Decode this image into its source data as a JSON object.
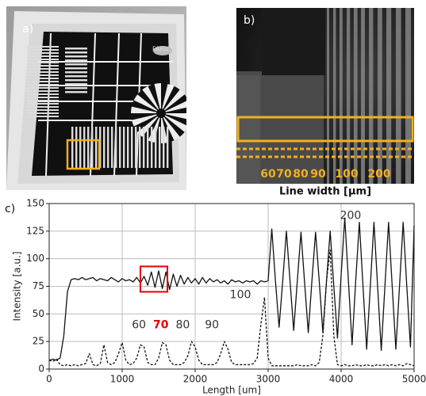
{
  "figure": {
    "a_label": "a)",
    "b_label": "b)",
    "b_ticks": [
      "60",
      "70",
      "80",
      "90",
      "100",
      "200"
    ],
    "b_axis_label": "Line width [μm]"
  },
  "chart_data": {
    "type": "line",
    "panel_label": "c)",
    "x_label": "Length [um]",
    "y_label": "Intensity [a.u.]",
    "xlim": [
      0,
      5000
    ],
    "xticks": [
      0,
      1000,
      2000,
      3000,
      4000,
      5000
    ],
    "ylim": [
      0,
      150
    ],
    "yticks": [
      0,
      25,
      50,
      75,
      100,
      125,
      150
    ],
    "grid": true,
    "x": [
      0,
      50,
      100,
      150,
      200,
      250,
      300,
      350,
      400,
      450,
      500,
      550,
      600,
      650,
      700,
      750,
      800,
      850,
      900,
      950,
      1000,
      1050,
      1100,
      1150,
      1200,
      1250,
      1300,
      1350,
      1400,
      1450,
      1500,
      1550,
      1600,
      1650,
      1700,
      1750,
      1800,
      1850,
      1900,
      1950,
      2000,
      2050,
      2100,
      2150,
      2200,
      2250,
      2300,
      2350,
      2400,
      2450,
      2500,
      2550,
      2600,
      2650,
      2700,
      2750,
      2800,
      2850,
      2900,
      2950,
      3000,
      3050,
      3100,
      3150,
      3200,
      3250,
      3300,
      3350,
      3400,
      3450,
      3500,
      3550,
      3600,
      3650,
      3700,
      3750,
      3800,
      3850,
      3900,
      3950,
      4000,
      4050,
      4100,
      4150,
      4200,
      4250,
      4300,
      4350,
      4400,
      4450,
      4500,
      4550,
      4600,
      4650,
      4700,
      4750,
      4800,
      4850,
      4900,
      4950,
      5000
    ],
    "series": [
      {
        "color": "#111111",
        "style": "solid",
        "values": [
          8,
          9,
          8,
          10,
          30,
          70,
          81,
          82,
          81,
          83,
          81,
          82,
          83,
          80,
          82,
          81,
          80,
          83,
          81,
          79,
          82,
          80,
          81,
          79,
          83,
          78,
          84,
          76,
          88,
          74,
          89,
          73,
          88,
          72,
          86,
          75,
          85,
          77,
          83,
          78,
          82,
          77,
          83,
          78,
          82,
          79,
          81,
          78,
          80,
          77,
          81,
          79,
          80,
          78,
          80,
          79,
          80,
          77,
          80,
          79,
          80,
          127,
          80,
          38,
          80,
          125,
          80,
          35,
          80,
          124,
          78,
          33,
          80,
          124,
          80,
          33,
          80,
          125,
          75,
          28,
          85,
          137,
          80,
          22,
          80,
          133,
          75,
          18,
          75,
          133,
          75,
          17,
          75,
          133,
          75,
          18,
          75,
          133,
          75,
          20,
          130
        ]
      },
      {
        "color": "#111111",
        "style": "dashed",
        "values": [
          8,
          7,
          9,
          4,
          3,
          4,
          3,
          4,
          3,
          4,
          5,
          14,
          4,
          3,
          5,
          22,
          6,
          4,
          6,
          14,
          24,
          8,
          4,
          5,
          10,
          22,
          20,
          6,
          4,
          4,
          10,
          24,
          22,
          8,
          4,
          4,
          4,
          6,
          12,
          25,
          20,
          8,
          4,
          4,
          4,
          4,
          6,
          14,
          25,
          18,
          6,
          4,
          4,
          4,
          4,
          4,
          5,
          10,
          40,
          65,
          10,
          3,
          3,
          3,
          3,
          3,
          3,
          3,
          4,
          3,
          3,
          3,
          4,
          3,
          6,
          30,
          80,
          108,
          30,
          4,
          3,
          4,
          3,
          3,
          4,
          3,
          3,
          4,
          3,
          3,
          4,
          3,
          4,
          3,
          4,
          3,
          4,
          3,
          5,
          4,
          3
        ]
      }
    ],
    "highlight": {
      "x": [
        1250,
        1620
      ],
      "y": [
        70,
        93
      ],
      "color": "#e00000"
    },
    "annotations": [
      {
        "text": "60",
        "x": 1230,
        "y": 40,
        "color": "#333333"
      },
      {
        "text": "70",
        "x": 1530,
        "y": 40,
        "color": "#e00000",
        "bold": true
      },
      {
        "text": "80",
        "x": 1830,
        "y": 40,
        "color": "#333333"
      },
      {
        "text": "90",
        "x": 2230,
        "y": 40,
        "color": "#333333"
      },
      {
        "text": "100",
        "x": 2620,
        "y": 67,
        "color": "#333333"
      },
      {
        "text": "200",
        "x": 4130,
        "y": 139,
        "color": "#333333"
      }
    ]
  }
}
